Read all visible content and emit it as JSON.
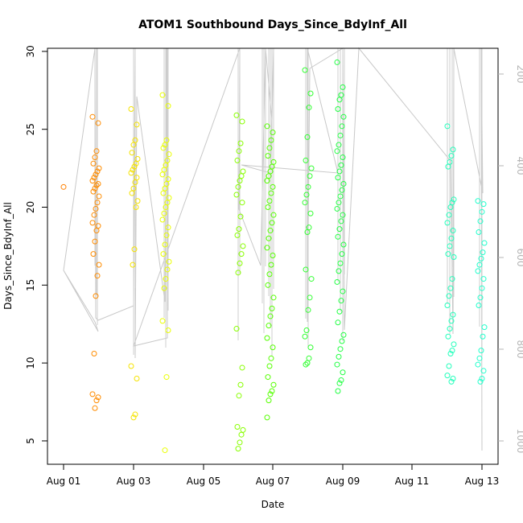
{
  "chart_data": {
    "type": "scatter",
    "title": "ATOM1 Southbound Days_Since_BdyInf_All",
    "xlabel": "Date",
    "ylabel": "Days_Since_BdyInf_All",
    "x_unit": "date (2014 not shown)",
    "xlim": [
      "Jul 31 12:00",
      "Aug 13 12:00"
    ],
    "ylim": [
      3.5,
      30.2
    ],
    "x_ticks": [
      "Aug 01",
      "Aug 03",
      "Aug 05",
      "Aug 07",
      "Aug 09",
      "Aug 11",
      "Aug 13"
    ],
    "y_ticks": [
      5,
      10,
      15,
      20,
      25,
      30
    ],
    "y2_ticks": [
      200,
      400,
      600,
      800,
      1000
    ],
    "y2_axis": "depth (right axis, inverted, grey)",
    "marker": "open circle",
    "color_scale": "by date, orange to cyan",
    "grid": false,
    "legend": "none",
    "point_groups": [
      {
        "date": "Aug 01",
        "color": "#ff8000",
        "values": [
          21.3
        ]
      },
      {
        "date": "Aug 01 late",
        "color": "#ff8c00",
        "values": [
          25.8,
          25.4,
          23.6,
          23.2,
          22.8,
          22.5,
          22.3,
          22.1,
          21.9,
          21.7,
          21.5,
          21.4,
          21.2,
          21.0,
          20.7,
          20.3,
          19.9,
          19.5,
          19.0,
          18.8,
          18.5,
          17.8,
          17.0,
          16.3,
          15.6,
          14.3,
          10.6,
          8.0,
          7.8,
          7.6,
          7.1
        ]
      },
      {
        "date": "Aug 03",
        "color": "#f5e300",
        "values": [
          26.3,
          25.3,
          24.3,
          24.0,
          23.5,
          23.1,
          22.8,
          22.6,
          22.4,
          22.2,
          21.9,
          21.6,
          21.2,
          20.9,
          20.4,
          20.0,
          17.3,
          16.3,
          9.8,
          9.0,
          6.7,
          6.5
        ]
      },
      {
        "date": "Aug 04",
        "color": "#eaff00",
        "values": [
          27.2,
          26.5,
          24.3,
          24.0,
          23.8,
          23.4,
          23.0,
          22.7,
          22.4,
          22.1,
          21.8,
          21.5,
          21.2,
          20.9,
          20.6,
          20.3,
          20.0,
          19.6,
          19.2,
          18.7,
          18.2,
          17.6,
          17.0,
          16.5,
          16.0,
          15.4,
          14.8,
          12.7,
          12.1,
          9.1,
          4.4
        ]
      },
      {
        "date": "Aug 06",
        "color": "#88ff00",
        "values": [
          25.9,
          25.5,
          24.1,
          23.6,
          23.0,
          22.3,
          22.0,
          21.7,
          21.3,
          20.8,
          20.3,
          19.4,
          18.6,
          18.2,
          17.5,
          17.0,
          16.4,
          15.8,
          12.2,
          9.7,
          8.6,
          7.9,
          5.9,
          5.7,
          5.4,
          4.9,
          4.5
        ]
      },
      {
        "date": "Aug 06 late",
        "color": "#55ff00",
        "values": [
          25.2,
          24.8,
          24.3,
          23.8,
          23.3,
          22.9,
          22.6,
          22.3,
          22.0,
          21.7,
          21.3,
          20.9,
          20.4,
          20.0,
          19.5,
          19.0,
          18.5,
          18.0,
          17.4,
          16.9,
          16.3,
          15.7,
          15.0,
          14.2,
          13.5,
          13.0,
          12.4,
          11.6,
          11.0,
          10.3,
          9.8,
          9.1,
          8.6,
          8.2,
          8.0,
          7.6,
          6.5
        ]
      },
      {
        "date": "Aug 08",
        "color": "#33ff33",
        "values": [
          28.8,
          27.3,
          26.4,
          24.5,
          23.0,
          22.5,
          22.0,
          21.3,
          20.8,
          20.3,
          19.6,
          18.7,
          18.4,
          16.0,
          15.4,
          14.2,
          13.4,
          12.1,
          11.7,
          11.0,
          10.3,
          10.0,
          9.9
        ]
      },
      {
        "date": "Aug 09",
        "color": "#22ff44",
        "values": [
          29.3,
          27.7,
          27.2,
          26.9,
          26.3,
          25.8,
          25.2,
          24.6,
          24.0,
          23.6,
          23.2,
          22.7,
          22.3,
          21.9,
          21.5,
          21.1,
          20.7,
          20.3,
          19.9,
          19.5,
          19.1,
          18.6,
          18.1,
          17.6,
          17.0,
          16.4,
          15.9,
          15.2,
          14.6,
          14.0,
          13.3,
          12.6,
          11.8,
          11.4,
          10.9,
          10.4,
          9.9,
          9.4,
          8.9,
          8.7,
          8.2
        ]
      },
      {
        "date": "Aug 12",
        "color": "#22ffbb",
        "values": [
          25.2,
          23.7,
          23.3,
          22.9,
          22.6,
          20.5,
          20.3,
          20.0,
          19.5,
          19.0,
          18.5,
          18.0,
          17.5,
          17.0,
          16.8,
          15.4,
          14.8,
          14.3,
          13.7,
          13.1,
          12.7,
          12.2,
          11.7,
          11.2,
          10.8,
          10.6,
          9.8,
          9.2,
          9.0,
          8.8
        ]
      },
      {
        "date": "Aug 13",
        "color": "#22ffcc",
        "values": [
          20.4,
          20.2,
          19.7,
          19.1,
          18.4,
          17.7,
          17.1,
          16.7,
          16.3,
          15.9,
          15.4,
          14.8,
          14.2,
          13.7,
          12.3,
          11.7,
          10.8,
          10.3,
          9.9,
          9.5,
          9.0,
          8.8
        ]
      }
    ]
  }
}
